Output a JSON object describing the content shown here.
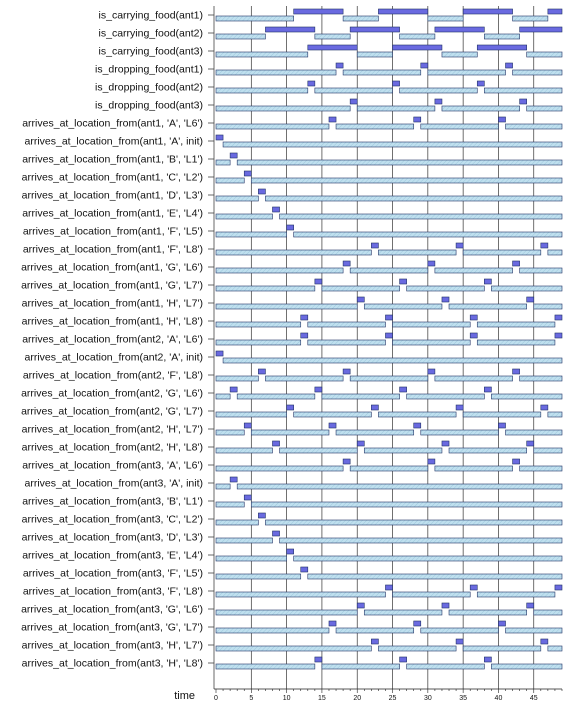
{
  "chart_data": {
    "type": "timeline",
    "xlabel": "time",
    "x_range": [
      0,
      49
    ],
    "major_ticks": [
      0,
      5,
      10,
      15,
      20,
      25,
      30,
      35,
      40,
      45
    ],
    "colors": {
      "true_fill": "#6a6ae0",
      "false_fill": "#bfe0ef",
      "stroke": "#223366",
      "grid": "#333333"
    },
    "rows": [
      {
        "label": "is_carrying_food(ant1)",
        "intervals": [
          [
            11,
            18
          ],
          [
            23,
            30
          ],
          [
            35,
            42
          ],
          [
            47,
            49
          ]
        ]
      },
      {
        "label": "is_carrying_food(ant2)",
        "intervals": [
          [
            7,
            14
          ],
          [
            19,
            26
          ],
          [
            31,
            38
          ],
          [
            43,
            49
          ]
        ]
      },
      {
        "label": "is_carrying_food(ant3)",
        "intervals": [
          [
            13,
            20
          ],
          [
            25,
            32
          ],
          [
            37,
            44
          ]
        ]
      },
      {
        "label": "is_dropping_food(ant1)",
        "intervals": [
          [
            17,
            18
          ],
          [
            29,
            30
          ],
          [
            41,
            42
          ]
        ]
      },
      {
        "label": "is_dropping_food(ant2)",
        "intervals": [
          [
            13,
            14
          ],
          [
            25,
            26
          ],
          [
            37,
            38
          ]
        ]
      },
      {
        "label": "is_dropping_food(ant3)",
        "intervals": [
          [
            19,
            20
          ],
          [
            31,
            32
          ],
          [
            43,
            44
          ]
        ]
      },
      {
        "label": "arrives_at_location_from(ant1, 'A', 'L6')",
        "intervals": [
          [
            16,
            17
          ],
          [
            28,
            29
          ],
          [
            40,
            41
          ]
        ]
      },
      {
        "label": "arrives_at_location_from(ant1, 'A', init)",
        "intervals": [
          [
            0,
            1
          ]
        ]
      },
      {
        "label": "arrives_at_location_from(ant1, 'B', 'L1')",
        "intervals": [
          [
            2,
            3
          ]
        ]
      },
      {
        "label": "arrives_at_location_from(ant1, 'C', 'L2')",
        "intervals": [
          [
            4,
            5
          ]
        ]
      },
      {
        "label": "arrives_at_location_from(ant1, 'D', 'L3')",
        "intervals": [
          [
            6,
            7
          ]
        ]
      },
      {
        "label": "arrives_at_location_from(ant1, 'E', 'L4')",
        "intervals": [
          [
            8,
            9
          ]
        ]
      },
      {
        "label": "arrives_at_location_from(ant1, 'F', 'L5')",
        "intervals": [
          [
            10,
            11
          ]
        ]
      },
      {
        "label": "arrives_at_location_from(ant1, 'F', 'L8')",
        "intervals": [
          [
            22,
            23
          ],
          [
            34,
            35
          ],
          [
            46,
            47
          ]
        ]
      },
      {
        "label": "arrives_at_location_from(ant1, 'G', 'L6')",
        "intervals": [
          [
            18,
            19
          ],
          [
            30,
            31
          ],
          [
            42,
            43
          ]
        ]
      },
      {
        "label": "arrives_at_location_from(ant1, 'G', 'L7')",
        "intervals": [
          [
            14,
            15
          ],
          [
            26,
            27
          ],
          [
            38,
            39
          ]
        ]
      },
      {
        "label": "arrives_at_location_from(ant1, 'H', 'L7')",
        "intervals": [
          [
            20,
            21
          ],
          [
            32,
            33
          ],
          [
            44,
            45
          ]
        ]
      },
      {
        "label": "arrives_at_location_from(ant1, 'H', 'L8')",
        "intervals": [
          [
            12,
            13
          ],
          [
            24,
            25
          ],
          [
            36,
            37
          ],
          [
            48,
            49
          ]
        ]
      },
      {
        "label": "arrives_at_location_from(ant2, 'A', 'L6')",
        "intervals": [
          [
            12,
            13
          ],
          [
            24,
            25
          ],
          [
            36,
            37
          ],
          [
            48,
            49
          ]
        ]
      },
      {
        "label": "arrives_at_location_from(ant2, 'A', init)",
        "intervals": [
          [
            0,
            1
          ]
        ]
      },
      {
        "label": "arrives_at_location_from(ant2, 'F', 'L8')",
        "intervals": [
          [
            6,
            7
          ],
          [
            18,
            19
          ],
          [
            30,
            31
          ],
          [
            42,
            43
          ]
        ]
      },
      {
        "label": "arrives_at_location_from(ant2, 'G', 'L6')",
        "intervals": [
          [
            2,
            3
          ],
          [
            14,
            15
          ],
          [
            26,
            27
          ],
          [
            38,
            39
          ]
        ]
      },
      {
        "label": "arrives_at_location_from(ant2, 'G', 'L7')",
        "intervals": [
          [
            10,
            11
          ],
          [
            22,
            23
          ],
          [
            34,
            35
          ],
          [
            46,
            47
          ]
        ]
      },
      {
        "label": "arrives_at_location_from(ant2, 'H', 'L7')",
        "intervals": [
          [
            4,
            5
          ],
          [
            16,
            17
          ],
          [
            28,
            29
          ],
          [
            40,
            41
          ]
        ]
      },
      {
        "label": "arrives_at_location_from(ant2, 'H', 'L8')",
        "intervals": [
          [
            8,
            9
          ],
          [
            20,
            21
          ],
          [
            32,
            33
          ],
          [
            44,
            45
          ]
        ]
      },
      {
        "label": "arrives_at_location_from(ant3, 'A', 'L6')",
        "intervals": [
          [
            18,
            19
          ],
          [
            30,
            31
          ],
          [
            42,
            43
          ]
        ]
      },
      {
        "label": "arrives_at_location_from(ant3, 'A', init)",
        "intervals": [
          [
            2,
            3
          ]
        ]
      },
      {
        "label": "arrives_at_location_from(ant3, 'B', 'L1')",
        "intervals": [
          [
            4,
            5
          ]
        ]
      },
      {
        "label": "arrives_at_location_from(ant3, 'C', 'L2')",
        "intervals": [
          [
            6,
            7
          ]
        ]
      },
      {
        "label": "arrives_at_location_from(ant3, 'D', 'L3')",
        "intervals": [
          [
            8,
            9
          ]
        ]
      },
      {
        "label": "arrives_at_location_from(ant3, 'E', 'L4')",
        "intervals": [
          [
            10,
            11
          ]
        ]
      },
      {
        "label": "arrives_at_location_from(ant3, 'F', 'L5')",
        "intervals": [
          [
            12,
            13
          ]
        ]
      },
      {
        "label": "arrives_at_location_from(ant3, 'F', 'L8')",
        "intervals": [
          [
            24,
            25
          ],
          [
            36,
            37
          ],
          [
            48,
            49
          ]
        ]
      },
      {
        "label": "arrives_at_location_from(ant3, 'G', 'L6')",
        "intervals": [
          [
            20,
            21
          ],
          [
            32,
            33
          ],
          [
            44,
            45
          ]
        ]
      },
      {
        "label": "arrives_at_location_from(ant3, 'G', 'L7')",
        "intervals": [
          [
            16,
            17
          ],
          [
            28,
            29
          ],
          [
            40,
            41
          ]
        ]
      },
      {
        "label": "arrives_at_location_from(ant3, 'H', 'L7')",
        "intervals": [
          [
            22,
            23
          ],
          [
            34,
            35
          ],
          [
            46,
            47
          ]
        ]
      },
      {
        "label": "arrives_at_location_from(ant3, 'H', 'L8')",
        "intervals": [
          [
            14,
            15
          ],
          [
            26,
            27
          ],
          [
            38,
            39
          ]
        ]
      }
    ]
  }
}
